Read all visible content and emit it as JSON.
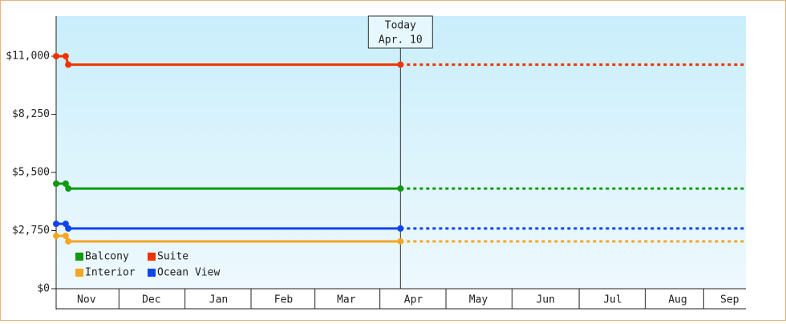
{
  "chart_data": {
    "type": "line",
    "x": [
      0,
      4.4,
      5.6,
      159
    ],
    "xlim": [
      0,
      318.5
    ],
    "xticks": [
      {
        "value": 14,
        "label": "Nov"
      },
      {
        "value": 44,
        "label": "Dec"
      },
      {
        "value": 75,
        "label": "Jan"
      },
      {
        "value": 105,
        "label": "Feb"
      },
      {
        "value": 134,
        "label": "Mar"
      },
      {
        "value": 165,
        "label": "Apr"
      },
      {
        "value": 195,
        "label": "May"
      },
      {
        "value": 226,
        "label": "Jun"
      },
      {
        "value": 257,
        "label": "Jul"
      },
      {
        "value": 287,
        "label": "Aug"
      },
      {
        "value": 311,
        "label": "Sep"
      }
    ],
    "ylim": [
      0,
      12900
    ],
    "yticks": [
      {
        "value": 0,
        "label": "$0"
      },
      {
        "value": 2750,
        "label": "$2,750"
      },
      {
        "value": 5500,
        "label": "$5,500"
      },
      {
        "value": 8250,
        "label": "$8,250"
      },
      {
        "value": 11000,
        "label": "$11,000"
      }
    ],
    "today": {
      "x": 159,
      "label": "Today",
      "date": "Apr. 10"
    },
    "series": [
      {
        "name": "Balcony",
        "color": "#119911",
        "values": [
          4970,
          4970,
          4740,
          4740
        ]
      },
      {
        "name": "Suite",
        "color": "#ee3300",
        "values": [
          11000,
          11000,
          10600,
          10600
        ]
      },
      {
        "name": "Interior",
        "color": "#f5a623",
        "values": [
          2500,
          2500,
          2240,
          2240
        ]
      },
      {
        "name": "Ocean View",
        "color": "#1144ee",
        "values": [
          3070,
          3070,
          2850,
          2850
        ]
      }
    ]
  }
}
